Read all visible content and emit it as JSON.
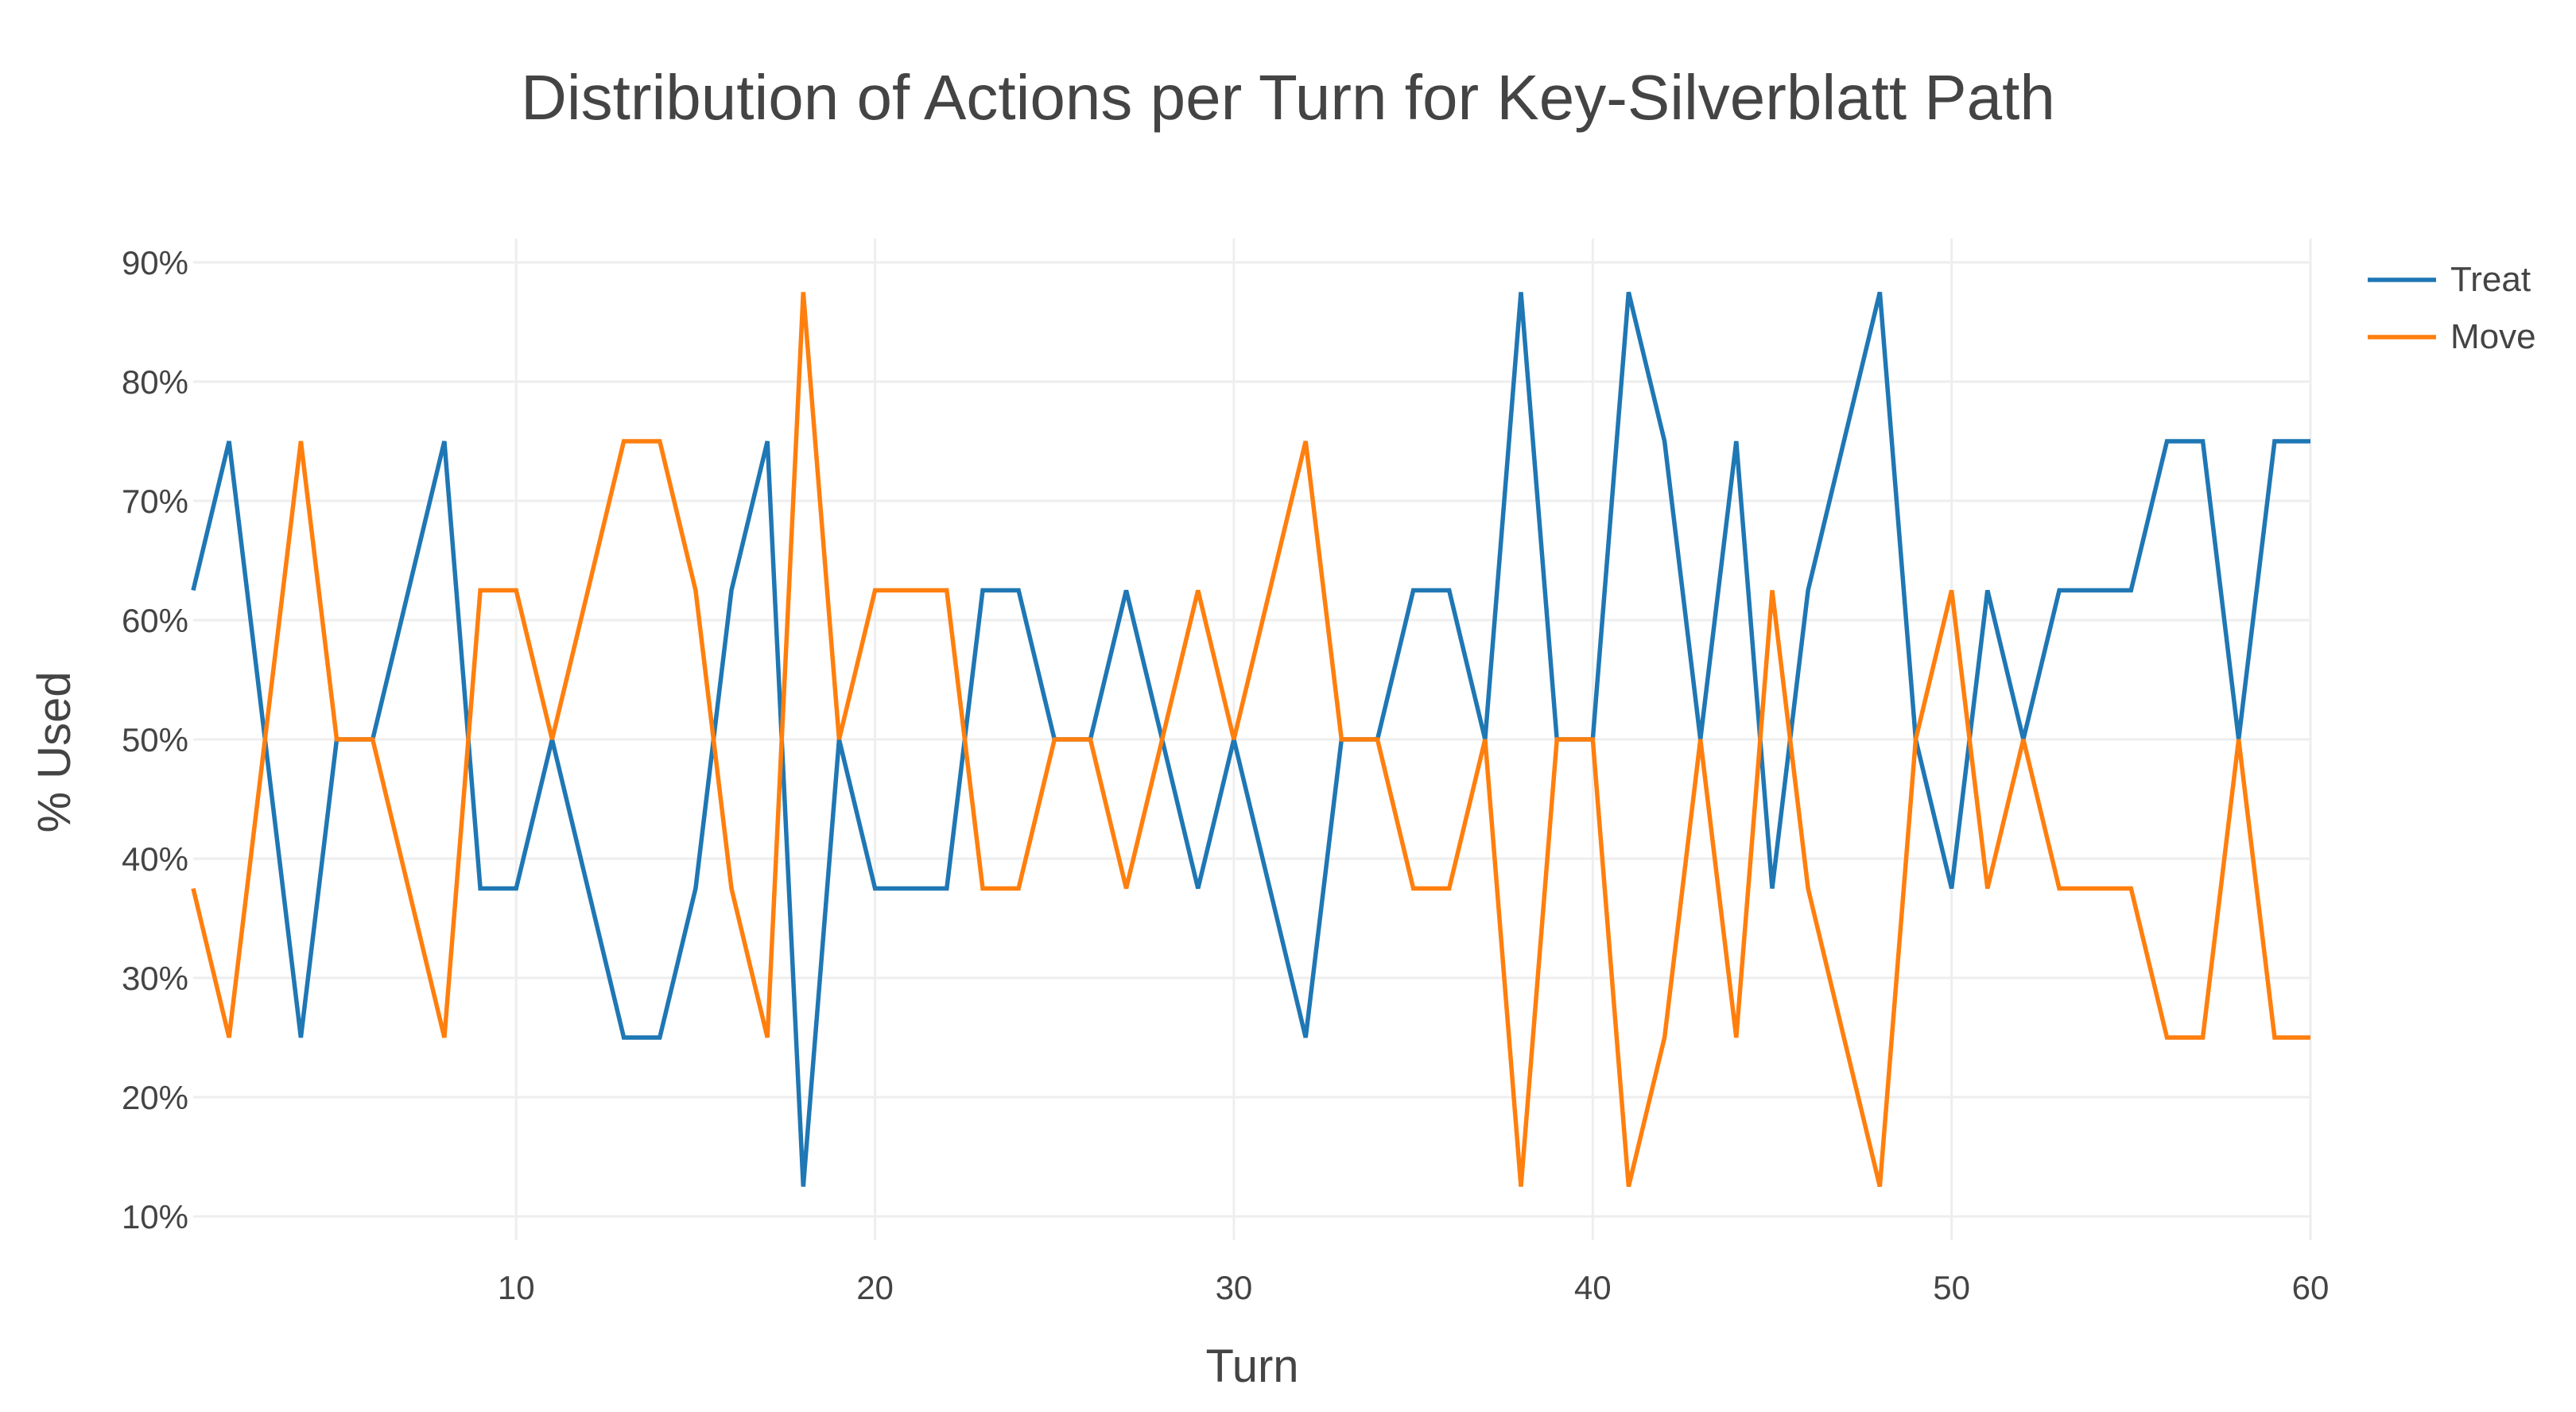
{
  "chart_data": {
    "type": "line",
    "title": "Distribution of Actions per Turn for Key-Silverblatt Path",
    "xlabel": "Turn",
    "ylabel": "% Used",
    "xlim": [
      1,
      60
    ],
    "ylim": [
      8,
      92
    ],
    "x_ticks": [
      10,
      20,
      30,
      40,
      50,
      60
    ],
    "y_ticks": [
      10,
      20,
      30,
      40,
      50,
      60,
      70,
      80,
      90
    ],
    "y_tick_suffix": "%",
    "grid": true,
    "legend_position": "top-right",
    "x": [
      1,
      2,
      3,
      4,
      5,
      6,
      7,
      8,
      9,
      10,
      11,
      12,
      13,
      14,
      15,
      16,
      17,
      18,
      19,
      20,
      21,
      22,
      23,
      24,
      25,
      26,
      27,
      28,
      29,
      30,
      31,
      32,
      33,
      34,
      35,
      36,
      37,
      38,
      39,
      40,
      41,
      42,
      43,
      44,
      45,
      46,
      47,
      48,
      49,
      50,
      51,
      52,
      53,
      54,
      55,
      56,
      57,
      58,
      59,
      60
    ],
    "series": [
      {
        "name": "Treat",
        "color": "#1f77b4",
        "values": [
          62.5,
          75,
          50,
          25,
          50,
          50,
          62.5,
          75,
          37.5,
          37.5,
          50,
          37.5,
          25,
          25,
          37.5,
          62.5,
          75,
          12.5,
          50,
          37.5,
          37.5,
          37.5,
          62.5,
          62.5,
          50,
          50,
          62.5,
          50,
          37.5,
          50,
          37.5,
          25,
          50,
          50,
          62.5,
          62.5,
          50,
          87.5,
          50,
          50,
          87.5,
          75,
          50,
          75,
          37.5,
          62.5,
          75,
          87.5,
          50,
          37.5,
          62.5,
          50,
          62.5,
          62.5,
          62.5,
          75,
          75,
          50,
          75,
          75
        ]
      },
      {
        "name": "Move",
        "color": "#ff7f0e",
        "values": [
          37.5,
          25,
          50,
          75,
          50,
          50,
          37.5,
          25,
          62.5,
          62.5,
          50,
          62.5,
          75,
          75,
          62.5,
          37.5,
          25,
          87.5,
          50,
          62.5,
          62.5,
          62.5,
          37.5,
          37.5,
          50,
          50,
          37.5,
          50,
          62.5,
          50,
          62.5,
          75,
          50,
          50,
          37.5,
          37.5,
          50,
          12.5,
          50,
          50,
          12.5,
          25,
          50,
          25,
          62.5,
          37.5,
          25,
          12.5,
          50,
          62.5,
          37.5,
          50,
          37.5,
          37.5,
          37.5,
          25,
          25,
          50,
          25,
          25
        ]
      }
    ]
  }
}
